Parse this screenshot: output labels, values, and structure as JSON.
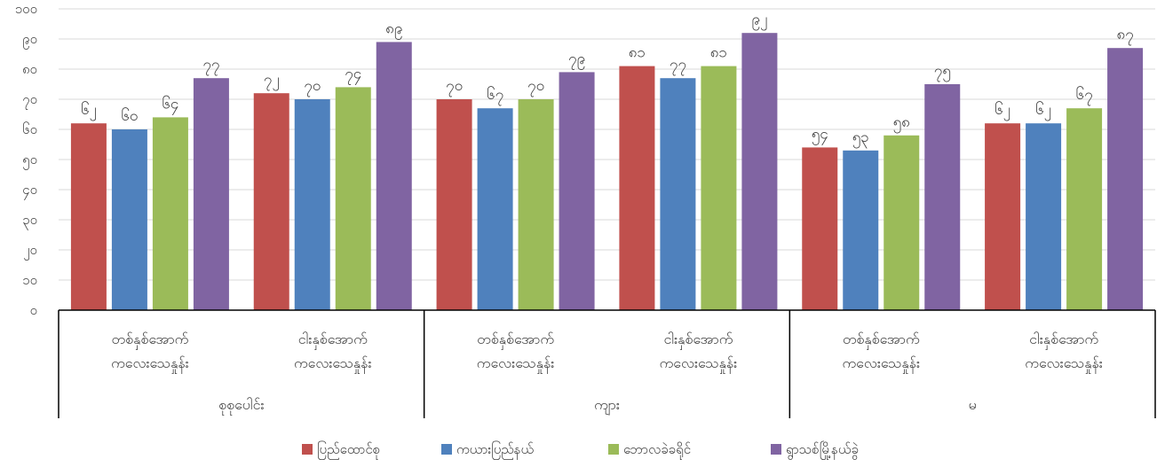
{
  "chart_data": {
    "type": "bar",
    "ylim": [
      0,
      100
    ],
    "y_ticks": [
      0,
      10,
      20,
      30,
      40,
      50,
      60,
      70,
      80,
      90,
      100
    ],
    "y_tick_labels": [
      "၀",
      "၁၀",
      "၂၀",
      "၃၀",
      "၄၀",
      "၅၀",
      "၆၀",
      "၇၀",
      "၈၀",
      "၉၀",
      "၁၀၀"
    ],
    "grid": true,
    "legend_position": "bottom",
    "groups": [
      {
        "label": "စုစုပေါင်း",
        "categories": [
          [
            "တစ်နှစ်အောက်",
            "ကလေးသေနှုန်း"
          ],
          [
            "ငါးနှစ်အောက်",
            "ကလေးသေနှုန်း"
          ]
        ]
      },
      {
        "label": "ကျား",
        "categories": [
          [
            "တစ်နှစ်အောက်",
            "ကလေးသေနှုန်း"
          ],
          [
            "ငါးနှစ်အောက်",
            "ကလေးသေနှုန်း"
          ]
        ]
      },
      {
        "label": "မ",
        "categories": [
          [
            "တစ်နှစ်အောက်",
            "ကလေးသေနှုန်း"
          ],
          [
            "ငါးနှစ်အောက်",
            "ကလေးသေနှုန်း"
          ]
        ]
      }
    ],
    "series": [
      {
        "name": "ပြည်ထောင်စု",
        "color": "#c0504d",
        "values": [
          62,
          72,
          70,
          81,
          54,
          62
        ],
        "labels": [
          "၆၂",
          "၇၂",
          "၇၀",
          "၈၁",
          "၅၄",
          "၆၂"
        ]
      },
      {
        "name": "ကယားပြည်နယ်",
        "color": "#4f81bd",
        "values": [
          60,
          70,
          67,
          77,
          53,
          62
        ],
        "labels": [
          "၆၀",
          "၇၀",
          "၆၇",
          "၇၇",
          "၅၃",
          "၆၂"
        ]
      },
      {
        "name": "ဘောလခဲခရိုင်",
        "color": "#9bbb59",
        "values": [
          64,
          74,
          70,
          81,
          58,
          67
        ],
        "labels": [
          "၆၄",
          "၇၄",
          "၇၀",
          "၈၁",
          "၅၈",
          "၆၇"
        ]
      },
      {
        "name": "ရွာသစ်မြို့နယ်ခွဲ",
        "color": "#8064a2",
        "values": [
          77,
          89,
          79,
          92,
          75,
          87
        ],
        "labels": [
          "၇၇",
          "၈၉",
          "၇၉",
          "၉၂",
          "၇၅",
          "၈၇"
        ]
      }
    ]
  }
}
